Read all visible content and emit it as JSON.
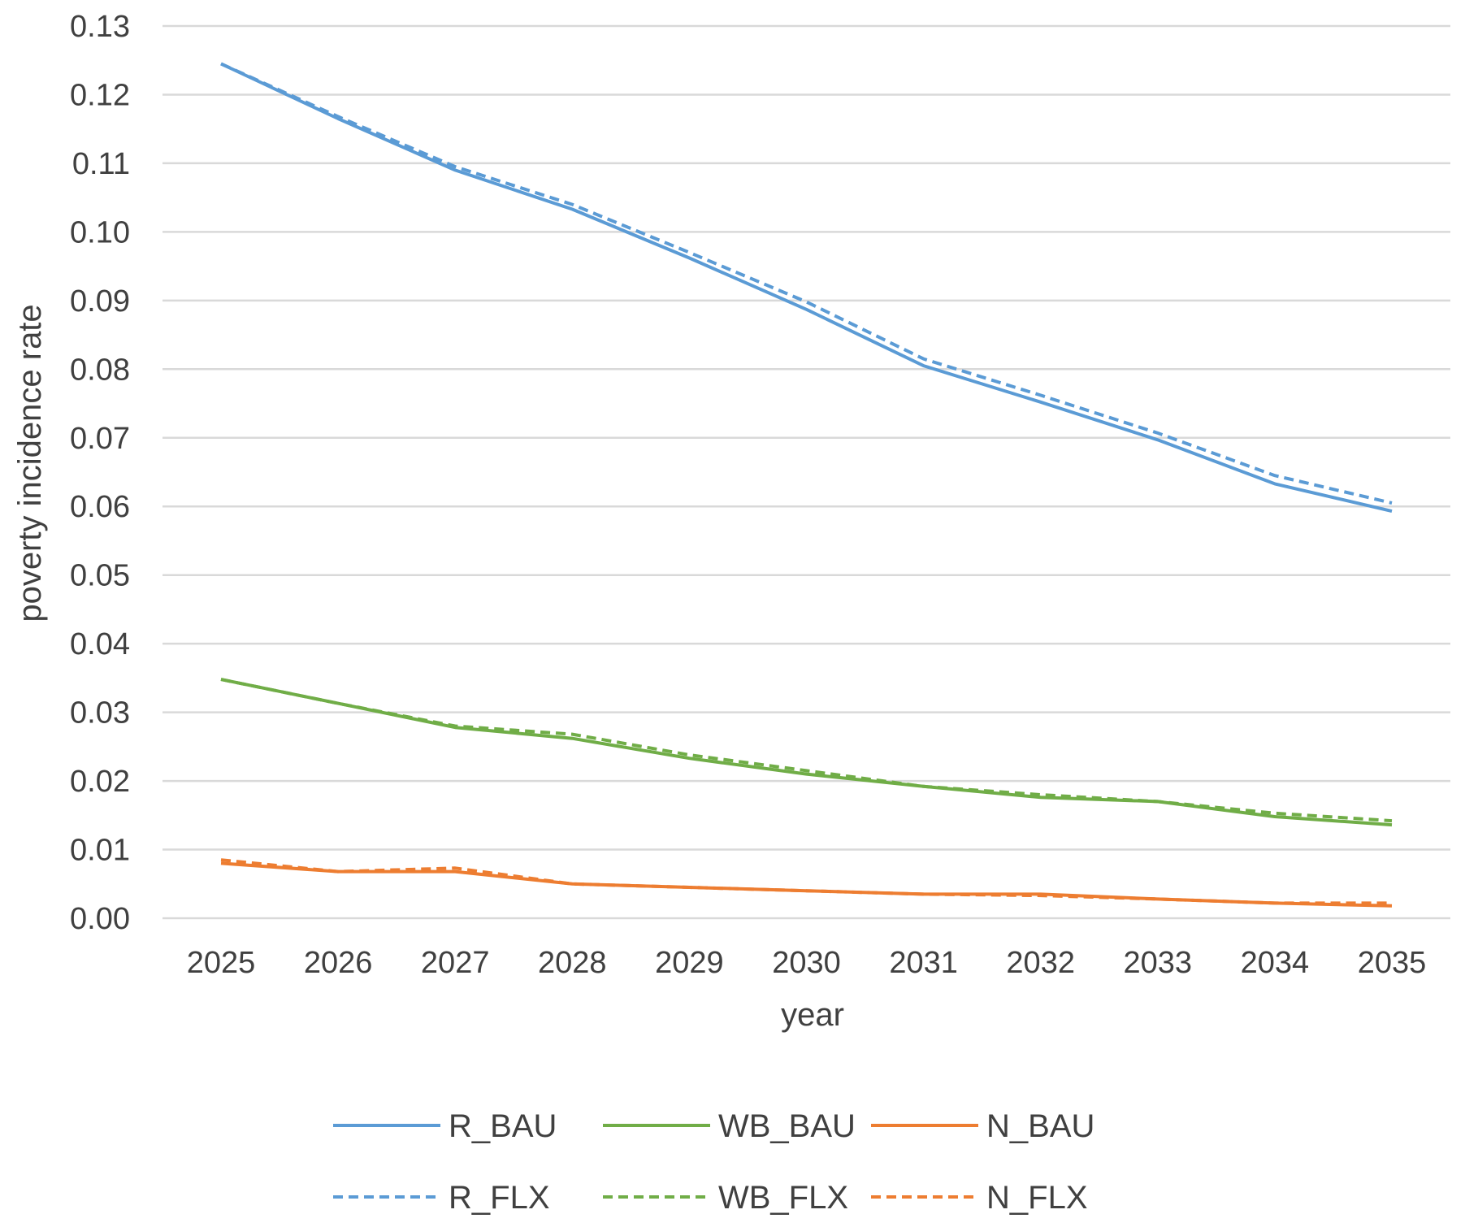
{
  "chart_data": {
    "type": "line",
    "title": "",
    "xlabel": "year",
    "ylabel": "poverty incidence rate",
    "categories": [
      "2025",
      "2026",
      "2027",
      "2028",
      "2029",
      "2030",
      "2031",
      "2032",
      "2033",
      "2034",
      "2035"
    ],
    "y_ticks": [
      "0.00",
      "0.01",
      "0.02",
      "0.03",
      "0.04",
      "0.05",
      "0.06",
      "0.07",
      "0.08",
      "0.09",
      "0.10",
      "0.11",
      "0.12",
      "0.13"
    ],
    "ylim": [
      0,
      0.13
    ],
    "grid": true,
    "legend_position": "bottom",
    "series": [
      {
        "name": "R_BAU",
        "color": "#5b9bd5",
        "dash": "solid",
        "values": [
          0.1245,
          0.1165,
          0.109,
          0.1033,
          0.0962,
          0.0887,
          0.0805,
          0.0752,
          0.0697,
          0.0633,
          0.0593
        ]
      },
      {
        "name": "WB_BAU",
        "color": "#70ad47",
        "dash": "solid",
        "values": [
          0.0348,
          0.0313,
          0.0278,
          0.0262,
          0.0233,
          0.021,
          0.0192,
          0.0176,
          0.017,
          0.0148,
          0.0136
        ]
      },
      {
        "name": "N_BAU",
        "color": "#ed7d31",
        "dash": "solid",
        "values": [
          0.008,
          0.0068,
          0.0068,
          0.005,
          0.0045,
          0.004,
          0.0035,
          0.0035,
          0.0028,
          0.0022,
          0.0018
        ]
      },
      {
        "name": "R_FLX",
        "color": "#5b9bd5",
        "dash": "dashed",
        "values": [
          0.1245,
          0.1168,
          0.1095,
          0.104,
          0.097,
          0.0898,
          0.0815,
          0.0762,
          0.0707,
          0.0645,
          0.0605
        ]
      },
      {
        "name": "WB_FLX",
        "color": "#70ad47",
        "dash": "dashed",
        "values": [
          0.0348,
          0.0313,
          0.028,
          0.0268,
          0.0238,
          0.0215,
          0.0192,
          0.018,
          0.017,
          0.0153,
          0.0142
        ]
      },
      {
        "name": "N_FLX",
        "color": "#ed7d31",
        "dash": "dashed",
        "values": [
          0.0085,
          0.0068,
          0.0073,
          0.005,
          0.0045,
          0.004,
          0.0035,
          0.0033,
          0.0028,
          0.0022,
          0.0022
        ]
      }
    ]
  }
}
